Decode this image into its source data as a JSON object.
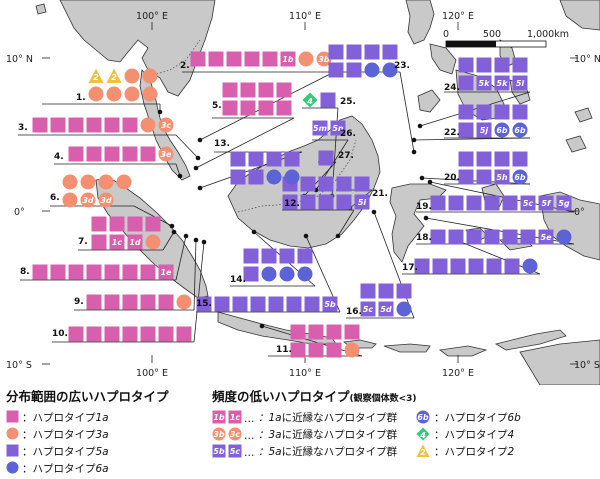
{
  "colors": {
    "pink": "#d85fae",
    "salmon": "#f58f72",
    "purple": "#8160d8",
    "blue": "#5b63d6",
    "green": "#36c97a",
    "yellow": "#f0c040",
    "land": "#c9c9c9",
    "sea": "#ffffff"
  },
  "map": {
    "lon_labels": [
      "100° E",
      "110° E",
      "120° E"
    ],
    "lat_labels": [
      "10° N",
      "0°",
      "10° S"
    ],
    "scale": {
      "ticks": [
        "0",
        "500",
        "1,000km"
      ]
    }
  },
  "sites": [
    {
      "no": "1.",
      "rows": [
        [
          "2",
          "2",
          "s",
          "s"
        ],
        [
          "s",
          "s",
          "s",
          "s"
        ]
      ]
    },
    {
      "no": "2.",
      "rows": [
        [
          "p",
          "p",
          "p",
          "p",
          "p",
          "1b",
          "s",
          "3b"
        ]
      ]
    },
    {
      "no": "3.",
      "rows": [
        [
          "p",
          "p",
          "p",
          "p",
          "p",
          "p",
          "s",
          "3c"
        ]
      ]
    },
    {
      "no": "4.",
      "rows": [
        [
          "p",
          "p",
          "p",
          "p",
          "p",
          "3e"
        ]
      ]
    },
    {
      "no": "5.",
      "rows": [
        [
          "p",
          "p",
          "p",
          "p"
        ],
        [
          "p",
          "p",
          "p",
          "p"
        ]
      ]
    },
    {
      "no": "6.",
      "rows": [
        [
          "s",
          "s",
          "s",
          "s"
        ],
        [
          "s",
          "3d",
          "3d"
        ]
      ]
    },
    {
      "no": "7.",
      "rows": [
        [
          "p",
          "p",
          "p",
          "p"
        ],
        [
          "p",
          "1c",
          "1d",
          "s"
        ]
      ]
    },
    {
      "no": "8.",
      "rows": [
        [
          "p",
          "p",
          "p",
          "p",
          "p",
          "p",
          "p",
          "1e"
        ]
      ]
    },
    {
      "no": "9.",
      "rows": [
        [
          "p",
          "p",
          "p",
          "p",
          "p",
          "s"
        ]
      ]
    },
    {
      "no": "10.",
      "rows": [
        [
          "p",
          "p",
          "p",
          "p",
          "p",
          "p",
          "p"
        ]
      ]
    },
    {
      "no": "11.",
      "rows": [
        [
          "p",
          "p",
          "p",
          "p"
        ],
        [
          "p",
          "p",
          "p",
          "s"
        ]
      ]
    },
    {
      "no": "12.",
      "rows": [
        [
          "u",
          "u",
          "u",
          "s"
        ],
        [
          "u",
          "u",
          "u"
        ]
      ]
    },
    {
      "no": "13.",
      "rows": [
        [
          "u",
          "u",
          "u",
          "u"
        ],
        [
          "u",
          "u",
          "b",
          "b"
        ]
      ]
    },
    {
      "no": "14.",
      "rows": [
        [
          "u",
          "u",
          "u",
          "u"
        ],
        [
          "u",
          "b",
          "b",
          "b"
        ]
      ]
    },
    {
      "no": "15.",
      "rows": [
        [
          "u",
          "u",
          "u",
          "u",
          "u",
          "u",
          "u",
          "5b"
        ]
      ]
    },
    {
      "no": "16.",
      "rows": [
        [
          "u",
          "u",
          "u"
        ],
        [
          "5c",
          "5d",
          "b"
        ]
      ]
    },
    {
      "no": "17.",
      "rows": [
        [
          "u",
          "u",
          "u",
          "u",
          "u",
          "u",
          "b"
        ]
      ]
    },
    {
      "no": "18.",
      "rows": [
        [
          "u",
          "u",
          "u",
          "u",
          "u",
          "u",
          "5e",
          "b"
        ]
      ]
    },
    {
      "no": "19.",
      "rows": [
        [
          "u",
          "u",
          "u",
          "u",
          "u",
          "5c",
          "5f",
          "5g"
        ]
      ]
    },
    {
      "no": "20.",
      "rows": [
        [
          "u",
          "u",
          "u",
          "u"
        ],
        [
          "u",
          "u",
          "5h",
          "6b"
        ]
      ]
    },
    {
      "no": "21.",
      "rows": [
        [
          "u",
          "u"
        ],
        [
          "u",
          "5i"
        ]
      ]
    },
    {
      "no": "22.",
      "rows": [
        [
          "u",
          "u",
          "u",
          "u"
        ],
        [
          "u",
          "5j",
          "6b",
          "6b"
        ]
      ]
    },
    {
      "no": "23.",
      "rows": [
        [
          "u",
          "u",
          "u",
          "u"
        ],
        [
          "u",
          "u",
          "b",
          "b"
        ]
      ]
    },
    {
      "no": "24.",
      "rows": [
        [
          "u",
          "u",
          "u",
          "u"
        ],
        [
          "u",
          "5k",
          "5k",
          "5l"
        ]
      ]
    },
    {
      "no": "25.",
      "rows": [
        [
          "4",
          "u"
        ]
      ]
    },
    {
      "no": "26.",
      "rows": [
        [
          "5m",
          "5n"
        ]
      ]
    },
    {
      "no": "27.",
      "rows": [
        [
          "u"
        ]
      ]
    }
  ],
  "legend": {
    "left_title": "分布範囲の広いハプロタイプ",
    "left_items": [
      {
        "shape": "p",
        "label": "：ハプロタイプ",
        "code": "1a"
      },
      {
        "shape": "s",
        "label": "：ハプロタイプ",
        "code": "3a"
      },
      {
        "shape": "u",
        "label": "：ハプロタイプ",
        "code": "5a"
      },
      {
        "shape": "b",
        "label": "：ハプロタイプ",
        "code": "6a"
      }
    ],
    "right_title": "頻度の低いハプロタイプ",
    "right_title_note": "(観察個体数<3)",
    "group_items": [
      {
        "codes": [
          "1b",
          "1c"
        ],
        "shape": "p",
        "code": "1a",
        "label": "に近縁なハプロタイプ群"
      },
      {
        "codes": [
          "3b",
          "3c"
        ],
        "shape": "s",
        "code": "3a",
        "label": "に近縁なハプロタイプ群"
      },
      {
        "codes": [
          "5b",
          "5c"
        ],
        "shape": "u",
        "code": "5a",
        "label": "に近縁なハプロタイプ群"
      }
    ],
    "single_items": [
      {
        "shape": "6b",
        "label": "：ハプロタイプ",
        "code": "6b"
      },
      {
        "shape": "4",
        "label": "：ハプロタイプ",
        "code": "4"
      },
      {
        "shape": "2",
        "label": "：ハプロタイプ",
        "code": "2"
      }
    ]
  }
}
